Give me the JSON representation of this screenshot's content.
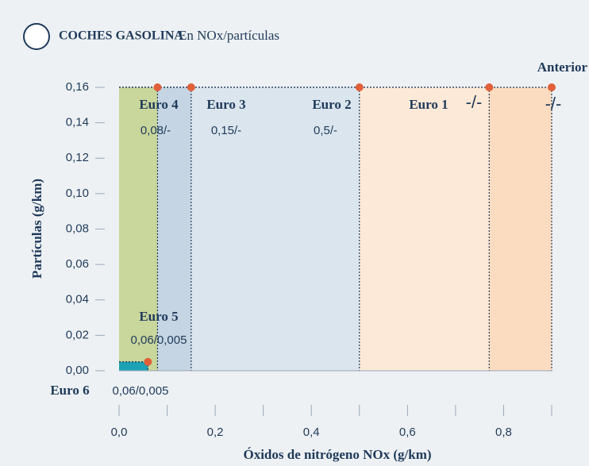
{
  "chart_data": {
    "type": "regions",
    "title": "COCHES GASOLINA",
    "subtitle": "En NOx/partículas",
    "x_label": "Óxidos de nitrógeno NOx (g/km)",
    "y_label": "Partículas (g/km)",
    "xlim": [
      0,
      0.9
    ],
    "ylim": [
      0,
      0.16
    ],
    "xticks": [
      {
        "value": 0,
        "label": "0,0"
      },
      {
        "value": 0.2,
        "label": "0,2"
      },
      {
        "value": 0.4,
        "label": "0,4"
      },
      {
        "value": 0.6,
        "label": "0,6"
      },
      {
        "value": 0.8,
        "label": "0,8"
      }
    ],
    "yticks": [
      {
        "value": 0,
        "label": "0,00"
      },
      {
        "value": 0.02,
        "label": "0,02"
      },
      {
        "value": 0.04,
        "label": "0,04"
      },
      {
        "value": 0.06,
        "label": "0,06"
      },
      {
        "value": 0.08,
        "label": "0,08"
      },
      {
        "value": 0.1,
        "label": "0,10"
      },
      {
        "value": 0.12,
        "label": "0,12"
      },
      {
        "value": 0.14,
        "label": "0,14"
      },
      {
        "value": 0.16,
        "label": "0,16"
      }
    ],
    "marker_color": "#e0603a",
    "series": [
      {
        "name": "Anterior",
        "color": "#fbdcc0",
        "x": 0.9,
        "y": 0.16,
        "value_label": "-/-"
      },
      {
        "name": "Euro 1",
        "color": "#fde9d7",
        "x": 0.77,
        "y": 0.16,
        "value_label": "-/-"
      },
      {
        "name": "Euro 2",
        "color": "#dbe5ee",
        "x": 0.5,
        "y": 0.16,
        "value_label": "0,5/-"
      },
      {
        "name": "Euro 3",
        "color": "#c5d5e3",
        "x": 0.15,
        "y": 0.16,
        "value_label": "0,15/-"
      },
      {
        "name": "Euro 4",
        "color": "#c9d69c",
        "x": 0.08,
        "y": 0.16,
        "value_label": "0,08/-"
      },
      {
        "name": "Euro 5",
        "color": "#1ba3b5",
        "x": 0.06,
        "y": 0.005,
        "value_label": "0,06/0,005"
      },
      {
        "name": "Euro 6",
        "color": "#1ba3b5",
        "x": 0.06,
        "y": 0.005,
        "value_label": "0,06/0,005"
      }
    ]
  }
}
